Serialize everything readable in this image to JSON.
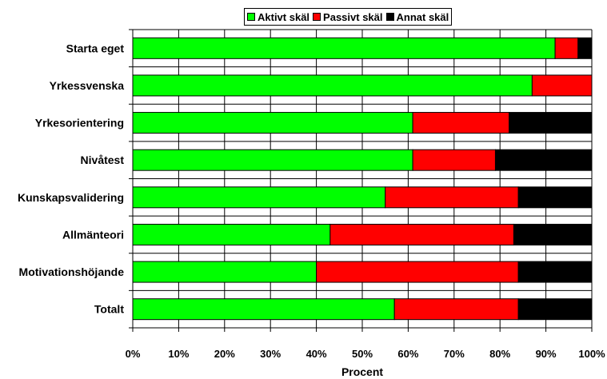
{
  "chart_data": {
    "type": "bar",
    "orientation": "horizontal",
    "stacked": "percent",
    "categories": [
      "Starta eget",
      "Yrkessvenska",
      "Yrkesorientering",
      "Nivåtest",
      "Kunskapsvalidering",
      "Allmänteori",
      "Motivationshöjande",
      "Totalt"
    ],
    "series": [
      {
        "name": "Aktivt skäl",
        "color": "#00ff00",
        "values": [
          92,
          87,
          61,
          61,
          55,
          43,
          40,
          57
        ]
      },
      {
        "name": "Passivt skäl",
        "color": "#ff0000",
        "values": [
          5,
          13,
          21,
          18,
          29,
          40,
          44,
          27
        ]
      },
      {
        "name": "Annat skäl",
        "color": "#000000",
        "values": [
          3,
          0,
          18,
          21,
          16,
          17,
          16,
          16
        ]
      }
    ],
    "xlabel": "Procent",
    "ylabel": "",
    "xlim": [
      0,
      100
    ],
    "xticks": [
      "0%",
      "10%",
      "20%",
      "30%",
      "40%",
      "50%",
      "60%",
      "70%",
      "80%",
      "90%",
      "100%"
    ],
    "grid": true,
    "legend_position": "top"
  }
}
